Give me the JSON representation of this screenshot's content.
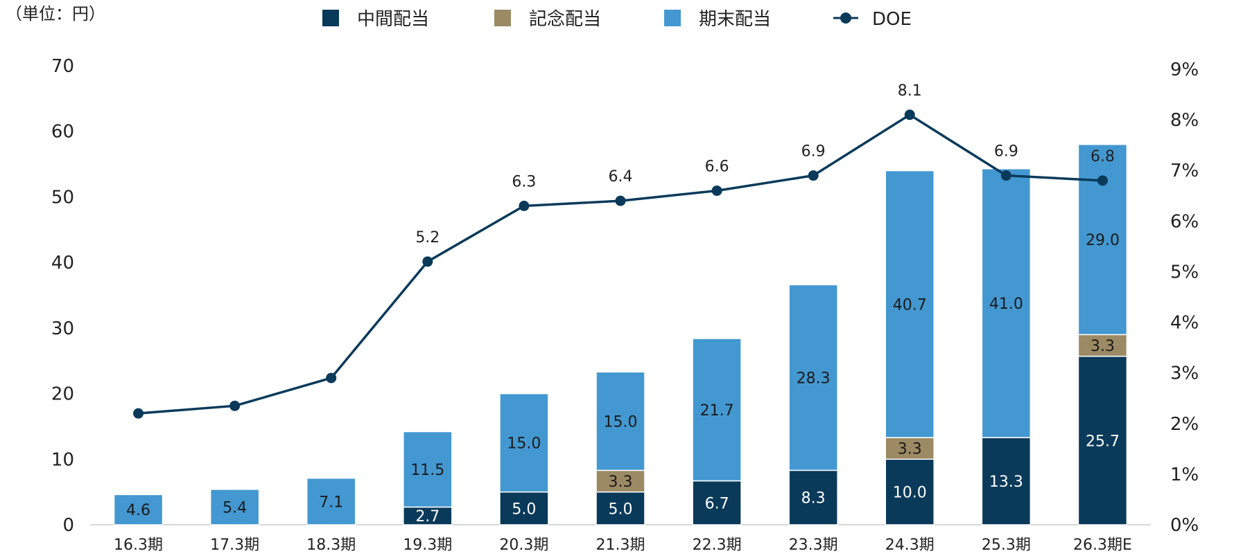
{
  "chart_data": {
    "type": "bar",
    "stacked": true,
    "unit_label": "（単位：円）",
    "categories": [
      "16.3期",
      "17.3期",
      "18.3期",
      "19.3期",
      "20.3期",
      "21.3期",
      "22.3期",
      "23.3期",
      "24.3期",
      "25.3期",
      "26.3期E"
    ],
    "series": [
      {
        "name": "中間配当",
        "color": "#0a3a5a",
        "label_color": "#ffffff",
        "values": [
          null,
          null,
          null,
          2.7,
          5.0,
          5.0,
          6.7,
          8.3,
          10.0,
          13.3,
          25.7
        ],
        "labels": [
          "",
          "",
          "",
          "2.7",
          "5.0",
          "5.0",
          "6.7",
          "8.3",
          "10.0",
          "13.3",
          "25.7"
        ]
      },
      {
        "name": "記念配当",
        "color": "#9b8a63",
        "label_color": "#1a1a1a",
        "values": [
          null,
          null,
          null,
          null,
          null,
          3.3,
          null,
          null,
          3.3,
          null,
          3.3
        ],
        "labels": [
          "",
          "",
          "",
          "",
          "",
          "3.3",
          "",
          "",
          "3.3",
          "",
          "3.3"
        ]
      },
      {
        "name": "期末配当",
        "color": "#4398d1",
        "label_color": "#1a1a1a",
        "values": [
          4.6,
          5.4,
          7.1,
          11.5,
          15.0,
          15.0,
          21.7,
          28.3,
          40.7,
          41.0,
          29.0
        ],
        "labels": [
          "4.6",
          "5.4",
          "7.1",
          "11.5",
          "15.0",
          "15.0",
          "21.7",
          "28.3",
          "40.7",
          "41.0",
          "29.0"
        ]
      }
    ],
    "line_series": {
      "name": "DOE",
      "color": "#0a3a5a",
      "axis": "right",
      "values": [
        2.2,
        2.35,
        2.9,
        5.2,
        6.3,
        6.4,
        6.6,
        6.9,
        8.1,
        6.9,
        6.8
      ],
      "labels": [
        "",
        "",
        "",
        "5.2",
        "6.3",
        "6.4",
        "6.6",
        "6.9",
        "8.1",
        "6.9",
        "6.8"
      ]
    },
    "y_left": {
      "ylim": [
        0,
        70
      ],
      "ticks": [
        "0",
        "10",
        "20",
        "30",
        "40",
        "50",
        "60",
        "70"
      ],
      "tick_values": [
        0,
        10,
        20,
        30,
        40,
        50,
        60,
        70
      ]
    },
    "y_right": {
      "ylim": [
        0,
        9
      ],
      "ticks": [
        "0%",
        "1%",
        "2%",
        "3%",
        "4%",
        "5%",
        "6%",
        "7%",
        "8%",
        "9%"
      ],
      "tick_values": [
        0,
        1,
        2,
        3,
        4,
        5,
        6,
        7,
        8,
        9
      ]
    },
    "legend": {
      "position": "top",
      "items": [
        {
          "label": "中間配当",
          "kind": "square",
          "color": "#0a3a5a"
        },
        {
          "label": "記念配当",
          "kind": "square",
          "color": "#9b8a63"
        },
        {
          "label": "期末配当",
          "kind": "square",
          "color": "#4398d1"
        },
        {
          "label": "DOE",
          "kind": "line-marker",
          "color": "#0a3a5a"
        }
      ]
    },
    "grid": false
  }
}
